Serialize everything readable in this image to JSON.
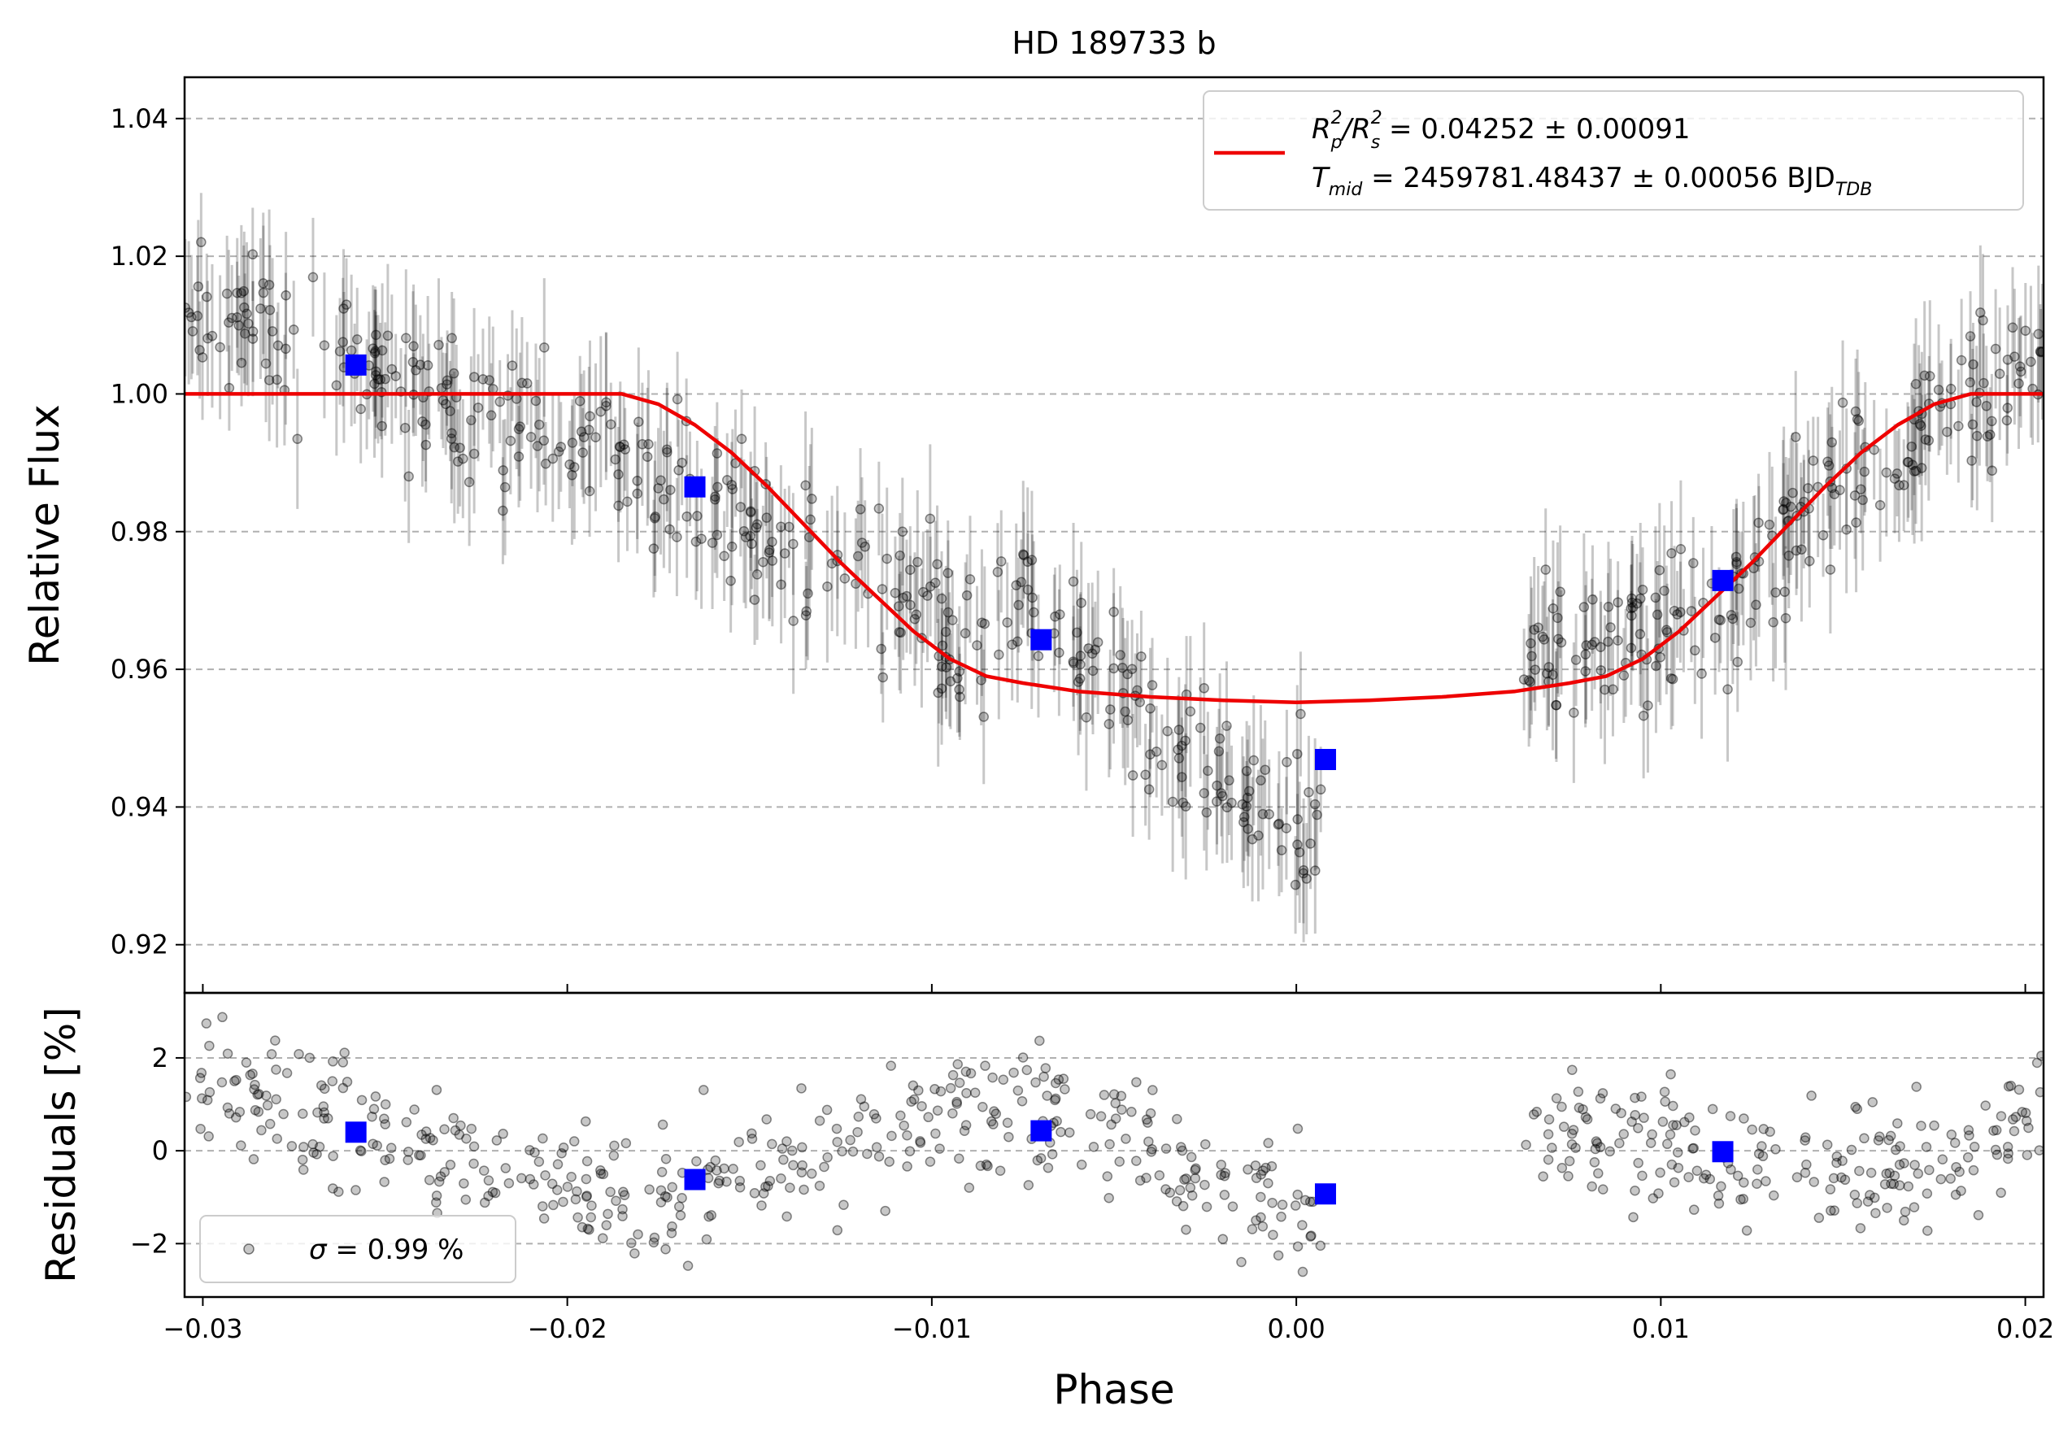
{
  "chart_data": {
    "type": "scatter",
    "title": "HD 189733 b",
    "xlabel": "Phase",
    "xlim": [
      -0.0305,
      0.0205
    ],
    "x_ticks": [
      {
        "value": -0.03,
        "label": "−0.03"
      },
      {
        "value": -0.02,
        "label": "−0.02"
      },
      {
        "value": -0.01,
        "label": "−0.01"
      },
      {
        "value": 0.0,
        "label": "0.00"
      },
      {
        "value": 0.01,
        "label": "0.01"
      },
      {
        "value": 0.02,
        "label": "0.02"
      }
    ],
    "grid": "horizontal-dashed",
    "panels": [
      {
        "name": "flux",
        "ylabel": "Relative Flux",
        "ylim": [
          0.913,
          1.046
        ],
        "y_ticks": [
          {
            "value": 0.92,
            "label": "0.92"
          },
          {
            "value": 0.94,
            "label": "0.94"
          },
          {
            "value": 0.96,
            "label": "0.96"
          },
          {
            "value": 0.98,
            "label": "0.98"
          },
          {
            "value": 1.0,
            "label": "1.00"
          },
          {
            "value": 1.02,
            "label": "1.02"
          },
          {
            "value": 1.04,
            "label": "1.04"
          }
        ],
        "legend": {
          "placement": "top-right",
          "line1_main": "R",
          "line1_sup1": "2",
          "line1_sub1": "p",
          "line1_mid": "/R",
          "line1_sup2": "2",
          "line1_sub2": "s",
          "line1_rest": " = 0.04252 ± 0.00091",
          "line2_main": "T",
          "line2_sub": "mid",
          "line2_rest": " = 2459781.48437 ± 0.00056 BJD",
          "line2_sub2": "TDB"
        },
        "model": {
          "color": "#ee0000",
          "x": [
            -0.0305,
            -0.0185,
            -0.0175,
            -0.0165,
            -0.0155,
            -0.0145,
            -0.0135,
            -0.0125,
            -0.0115,
            -0.0105,
            -0.0095,
            -0.0085,
            -0.0075,
            -0.006,
            -0.004,
            -0.002,
            0.0,
            0.002,
            0.004,
            0.006,
            0.0075,
            0.0085,
            0.0095,
            0.0105,
            0.0115,
            0.0125,
            0.0135,
            0.0145,
            0.0155,
            0.0165,
            0.0175,
            0.0185,
            0.0205
          ],
          "y": [
            1.0,
            1.0,
            0.9985,
            0.9955,
            0.9915,
            0.9865,
            0.981,
            0.9755,
            0.9705,
            0.9655,
            0.9615,
            0.959,
            0.958,
            0.9568,
            0.956,
            0.9555,
            0.9552,
            0.9555,
            0.956,
            0.9568,
            0.958,
            0.959,
            0.9615,
            0.9655,
            0.9705,
            0.9755,
            0.981,
            0.9865,
            0.9915,
            0.9955,
            0.9985,
            1.0,
            1.0
          ]
        },
        "binned": {
          "color": "#0000ff",
          "x": [
            -0.0258,
            -0.0165,
            -0.007,
            0.0008,
            0.0117
          ],
          "y": [
            1.0042,
            0.9865,
            0.9643,
            0.9469,
            0.9729
          ]
        },
        "data_trend": {
          "x": [
            -0.0305,
            -0.028,
            -0.026,
            -0.024,
            -0.022,
            -0.0195,
            -0.0175,
            -0.0165,
            -0.016,
            -0.0155,
            -0.015,
            -0.0145,
            -0.014,
            -0.0125,
            -0.011,
            -0.0095,
            -0.009,
            -0.0075,
            -0.0065,
            -0.0055,
            -0.005,
            -0.004,
            -0.003,
            -0.002,
            -0.001,
            0.0,
            0.0005,
            0.0006,
            0.0065,
            0.008,
            0.0095,
            0.011,
            0.012,
            0.0135,
            0.015,
            0.0165,
            0.018,
            0.0195,
            0.0205
          ],
          "y": [
            1.012,
            1.01,
            1.004,
            1.0,
            0.997,
            0.992,
            0.988,
            0.986,
            0.984,
            0.982,
            0.982,
            0.98,
            0.976,
            0.976,
            0.972,
            0.965,
            0.963,
            0.972,
            0.966,
            0.96,
            0.958,
            0.952,
            0.948,
            0.945,
            0.942,
            0.937,
            0.936,
            0.936,
            0.96,
            0.963,
            0.966,
            0.967,
            0.968,
            0.98,
            0.988,
            0.992,
            0.997,
            1.003,
            1.004
          ],
          "scatter_sd": 0.0055,
          "errorbar_halfwidth": 0.0085,
          "gap": [
            0.0007,
            0.0062
          ],
          "n_points": 720,
          "point_color": "#000000",
          "point_alpha": 0.22
        }
      },
      {
        "name": "residuals",
        "ylabel": "Residuals [%]",
        "ylim": [
          -3.15,
          3.4
        ],
        "y_ticks": [
          {
            "value": -2,
            "label": "−2"
          },
          {
            "value": 0,
            "label": "0"
          },
          {
            "value": 2,
            "label": "2"
          }
        ],
        "legend": {
          "placement": "bottom-left",
          "sigma_symbol": "σ",
          "text": " = 0.99 %"
        },
        "binned": {
          "color": "#0000ff",
          "x": [
            -0.0258,
            -0.0165,
            -0.007,
            0.0008,
            0.0117
          ],
          "y": [
            0.4,
            -0.62,
            0.43,
            -0.93,
            -0.02
          ]
        },
        "data_trend": {
          "x": [
            -0.0305,
            -0.028,
            -0.025,
            -0.022,
            -0.019,
            -0.016,
            -0.014,
            -0.013,
            -0.011,
            -0.009,
            -0.0075,
            -0.006,
            -0.004,
            -0.0025,
            -0.001,
            0.0005,
            0.0065,
            0.009,
            0.012,
            0.015,
            0.018,
            0.0205
          ],
          "y": [
            1.3,
            1.1,
            0.3,
            -0.4,
            -0.9,
            -0.8,
            -0.5,
            0.2,
            0.4,
            0.9,
            1.2,
            0.8,
            -0.2,
            -0.8,
            -1.1,
            -1.3,
            0.5,
            0.3,
            -0.1,
            -0.4,
            -0.3,
            0.7
          ],
          "scatter_sd": 0.72,
          "gap": [
            0.0007,
            0.0062
          ],
          "n_points": 720,
          "point_color": "#000000",
          "point_alpha": 0.22
        }
      }
    ]
  }
}
